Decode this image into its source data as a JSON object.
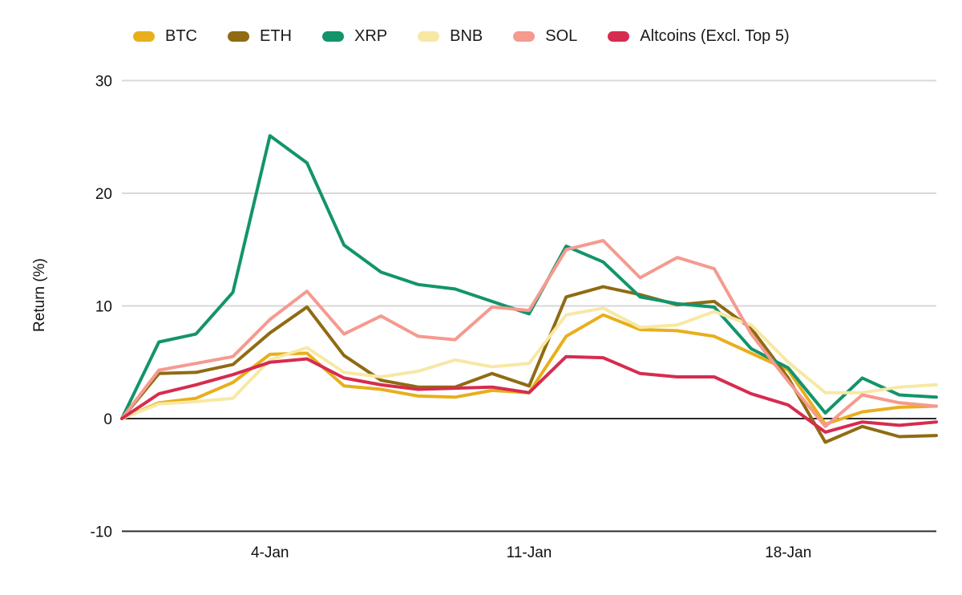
{
  "page": {
    "background": "#ffffff"
  },
  "chart_data": {
    "type": "line",
    "title": "",
    "xlabel": "",
    "ylabel": "Return (%)",
    "grid": "horizontal-light",
    "legend_position": "top",
    "ylim": [
      -10,
      30
    ],
    "yticks": [
      30,
      20,
      10,
      0,
      -10
    ],
    "x": [
      "31-Dec",
      "1-Jan",
      "2-Jan",
      "3-Jan",
      "4-Jan",
      "5-Jan",
      "6-Jan",
      "7-Jan",
      "8-Jan",
      "9-Jan",
      "10-Jan",
      "11-Jan",
      "12-Jan",
      "13-Jan",
      "14-Jan",
      "15-Jan",
      "16-Jan",
      "17-Jan",
      "18-Jan",
      "19-Jan",
      "20-Jan",
      "21-Jan",
      "22-Jan"
    ],
    "x_tick_labels": [
      "4-Jan",
      "11-Jan",
      "18-Jan"
    ],
    "x_tick_indices": [
      4,
      11,
      18
    ],
    "series": [
      {
        "name": "BTC",
        "color": "#E8AF1C",
        "values": [
          0,
          1.4,
          1.8,
          3.2,
          5.7,
          5.8,
          2.9,
          2.6,
          2.0,
          1.9,
          2.5,
          2.3,
          7.3,
          9.2,
          7.9,
          7.8,
          7.3,
          5.8,
          4.3,
          -0.5,
          0.6,
          1.0,
          1.1
        ]
      },
      {
        "name": "ETH",
        "color": "#8F6B12",
        "values": [
          0,
          4.0,
          4.1,
          4.8,
          7.6,
          9.9,
          5.6,
          3.4,
          2.8,
          2.8,
          4.0,
          2.9,
          10.8,
          11.7,
          11.0,
          10.1,
          10.4,
          8.0,
          3.6,
          -2.1,
          -0.7,
          -1.6,
          -1.5
        ]
      },
      {
        "name": "XRP",
        "color": "#13946B",
        "values": [
          0,
          6.8,
          7.5,
          11.2,
          25.1,
          22.7,
          15.4,
          13.0,
          11.9,
          11.5,
          10.4,
          9.3,
          15.3,
          13.9,
          10.8,
          10.2,
          9.9,
          6.2,
          4.5,
          0.5,
          3.6,
          2.1,
          1.9
        ]
      },
      {
        "name": "BNB",
        "color": "#F7E8A4",
        "values": [
          0,
          1.3,
          1.5,
          1.8,
          5.2,
          6.3,
          4.1,
          3.7,
          4.2,
          5.2,
          4.6,
          4.9,
          9.2,
          9.8,
          8.1,
          8.3,
          9.5,
          8.3,
          5.0,
          2.3,
          2.3,
          2.8,
          3.0
        ]
      },
      {
        "name": "SOL",
        "color": "#F59A8F",
        "values": [
          0,
          4.3,
          4.9,
          5.5,
          8.8,
          11.3,
          7.5,
          9.1,
          7.3,
          7.0,
          9.9,
          9.6,
          15.0,
          15.8,
          12.5,
          14.3,
          13.3,
          7.5,
          3.3,
          -0.7,
          2.1,
          1.4,
          1.1
        ]
      },
      {
        "name": "Altcoins (Excl. Top 5)",
        "color": "#D62C4F",
        "values": [
          0,
          2.2,
          3.0,
          3.9,
          5.0,
          5.3,
          3.6,
          3.0,
          2.6,
          2.7,
          2.8,
          2.3,
          5.5,
          5.4,
          4.0,
          3.7,
          3.7,
          2.2,
          1.2,
          -1.2,
          -0.3,
          -0.6,
          -0.3
        ]
      }
    ]
  },
  "axes": {
    "y_tick_labels": [
      "30",
      "20",
      "10",
      "0",
      "-10"
    ],
    "x_tick_labels": [
      "4-Jan",
      "11-Jan",
      "18-Jan"
    ]
  },
  "style": {
    "gridline_color": "#D8D8D8",
    "zero_line_color": "#2B2B2B",
    "axis_line_color": "#2B2B2B",
    "line_width": 4
  }
}
